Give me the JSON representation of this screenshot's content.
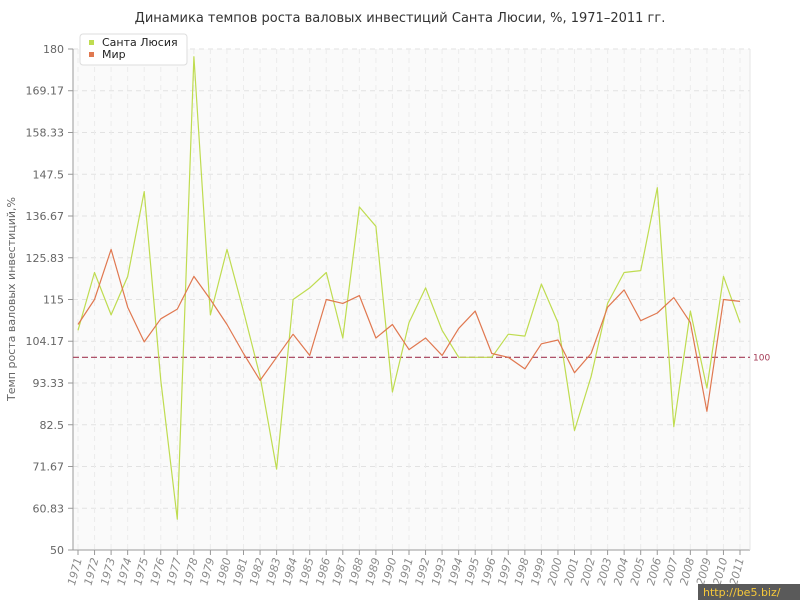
{
  "chart_data": {
    "type": "line",
    "title": "Динамика темпов роста валовых инвестиций Санта Люсии, %, 1971–2011 гг.",
    "xlabel": "",
    "ylabel": "Темп роста валовых инвестиций,%",
    "ylim": [
      50,
      180
    ],
    "yticks": [
      "50",
      "60.83",
      "71.67",
      "82.5",
      "93.33",
      "104.17",
      "115",
      "125.83",
      "136.67",
      "147.5",
      "158.33",
      "169.17",
      "180"
    ],
    "x": [
      "1971",
      "1972",
      "1973",
      "1974",
      "1975",
      "1976",
      "1977",
      "1978",
      "1979",
      "1980",
      "1981",
      "1982",
      "1983",
      "1984",
      "1985",
      "1986",
      "1987",
      "1988",
      "1989",
      "1990",
      "1991",
      "1992",
      "1993",
      "1994",
      "1995",
      "1996",
      "1997",
      "1998",
      "1999",
      "2000",
      "2001",
      "2002",
      "2003",
      "2004",
      "2005",
      "2006",
      "2007",
      "2008",
      "2009",
      "2010",
      "2011"
    ],
    "series": [
      {
        "name": "Санта Люсия",
        "color": "#bfdc50",
        "values": [
          107,
          122,
          111,
          121,
          143,
          94,
          58,
          178,
          111,
          128,
          112,
          95,
          71,
          115,
          118,
          122,
          105,
          139,
          134,
          91,
          109,
          118,
          107,
          100,
          100,
          100,
          106,
          105.5,
          119,
          109,
          81,
          95,
          114,
          122,
          122.5,
          144,
          82,
          112,
          92,
          121,
          109
        ]
      },
      {
        "name": "Мир",
        "color": "#e07850",
        "values": [
          108.5,
          115,
          128,
          113,
          104,
          110,
          112.5,
          121,
          115,
          108.5,
          101,
          94,
          100,
          106,
          100.5,
          115,
          114,
          116,
          105,
          108.5,
          102,
          105,
          100.5,
          107.5,
          112,
          101,
          100,
          97,
          103.5,
          104.5,
          96,
          101,
          113,
          117.5,
          109.5,
          111.5,
          115.5,
          109,
          86,
          115,
          114.5
        ]
      }
    ],
    "reference_line": {
      "value": 100,
      "label": "100",
      "color": "#a33a55"
    },
    "grid": true,
    "legend_position": "top-left"
  },
  "watermark": "http://be5.biz/"
}
